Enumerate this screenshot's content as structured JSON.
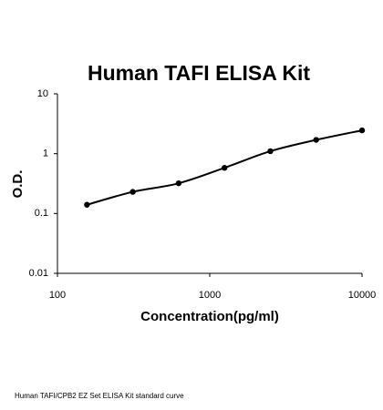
{
  "chart_data": {
    "type": "scatter",
    "title": "Human TAFI ELISA Kit",
    "x_label": "Concentration(pg/ml)",
    "y_label": "O.D.",
    "caption": "Human TAFI/CPB2 EZ Set ELISA Kit standard curve",
    "x": [
      156.25,
      312.5,
      625,
      1250,
      2500,
      5000,
      10000
    ],
    "values": [
      0.14,
      0.23,
      0.32,
      0.58,
      1.1,
      1.7,
      2.45
    ],
    "color": "#000000",
    "curve": true,
    "x_log": true,
    "y_log": true,
    "xlim": [
      100,
      10000
    ],
    "xticks": [
      100,
      1000,
      10000
    ],
    "ylim": [
      0.01,
      10
    ],
    "yticks": [
      0.01,
      0.1,
      1,
      10
    ]
  }
}
